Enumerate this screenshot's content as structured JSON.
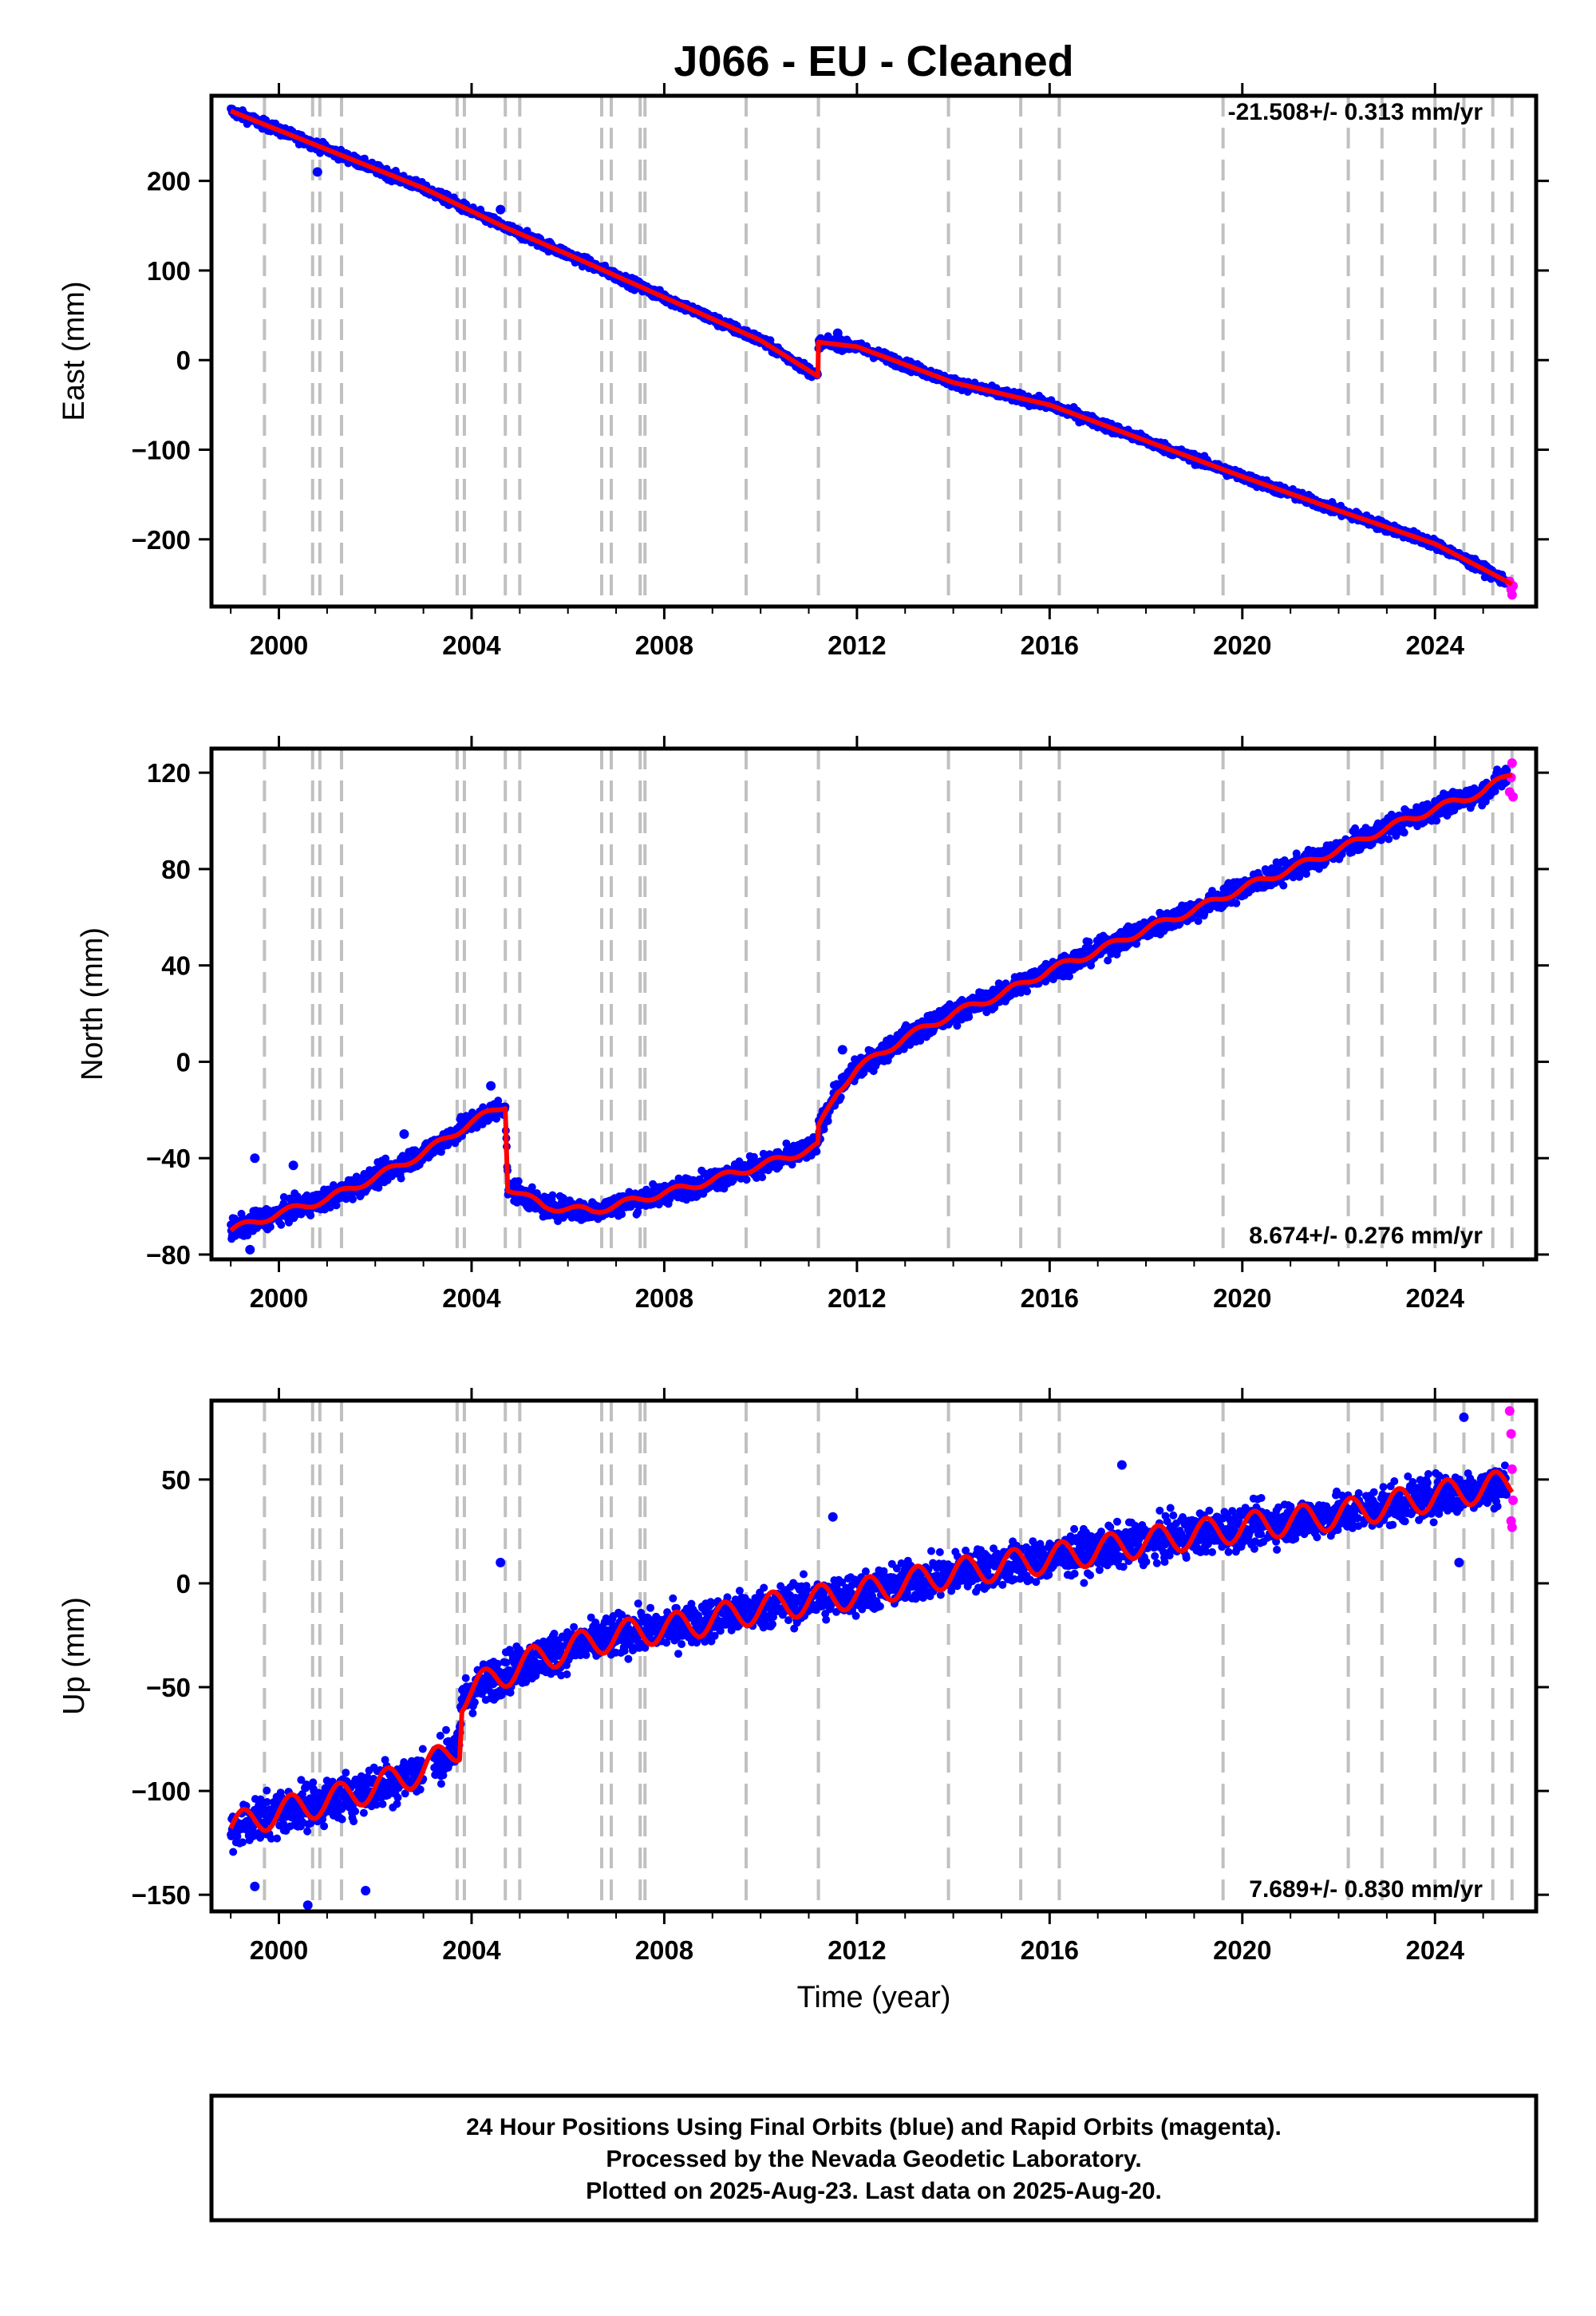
{
  "title": "J066  - EU - Cleaned",
  "xlabel": "Time (year)",
  "footer": [
    "24 Hour Positions Using Final Orbits (blue) and Rapid Orbits (magenta).",
    "Processed by the Nevada Geodetic Laboratory.",
    "Plotted on 2025-Aug-23. Last data on 2025-Aug-20."
  ],
  "colors": {
    "final": "#0000ff",
    "rapid": "#ff00ff",
    "model": "#ff0000",
    "events": "#c0c0c0"
  },
  "chart_data": [
    {
      "type": "scatter",
      "ylabel": "East (mm)",
      "rate": "-21.508+/- 0.313 mm/yr",
      "xlim": [
        1998.6,
        2026.1
      ],
      "ylim": [
        -275,
        295
      ],
      "xticks": [
        2000,
        2004,
        2008,
        2012,
        2016,
        2020,
        2024
      ],
      "yticks": [
        -200,
        -100,
        0,
        100,
        200
      ],
      "events": [
        1999.7,
        2000.7,
        2000.85,
        2001.3,
        2003.7,
        2003.85,
        2004.7,
        2005.0,
        2006.7,
        2006.9,
        2007.5,
        2007.6,
        2009.7,
        2011.2,
        2013.9,
        2015.4,
        2016.2,
        2019.6,
        2022.2,
        2022.9,
        2024.0,
        2024.6,
        2025.2,
        2025.6
      ],
      "trend": [
        [
          1999.0,
          278
        ],
        [
          2001.0,
          235
        ],
        [
          2003.0,
          192
        ],
        [
          2004.7,
          148
        ],
        [
          2006.0,
          118
        ],
        [
          2008.0,
          70
        ],
        [
          2010.0,
          22
        ],
        [
          2011.19,
          -18
        ],
        [
          2011.2,
          20
        ],
        [
          2012.0,
          15
        ],
        [
          2014.0,
          -25
        ],
        [
          2016.0,
          -50
        ],
        [
          2018.0,
          -90
        ],
        [
          2020.0,
          -130
        ],
        [
          2022.0,
          -168
        ],
        [
          2024.0,
          -205
        ],
        [
          2025.6,
          -250
        ]
      ],
      "outliers": [
        [
          2000.8,
          210
        ],
        [
          2004.6,
          168
        ],
        [
          2011.6,
          30
        ]
      ],
      "rapid": [
        [
          2025.55,
          -247
        ],
        [
          2025.58,
          -256
        ],
        [
          2025.6,
          -262
        ],
        [
          2025.62,
          -252
        ]
      ]
    },
    {
      "type": "scatter",
      "ylabel": "North (mm)",
      "rate": "8.674+/- 0.276 mm/yr",
      "xlim": [
        1998.6,
        2026.1
      ],
      "ylim": [
        -82,
        130
      ],
      "xticks": [
        2000,
        2004,
        2008,
        2012,
        2016,
        2020,
        2024
      ],
      "yticks": [
        -80,
        -40,
        0,
        40,
        80,
        120
      ],
      "events": [
        1999.7,
        2000.7,
        2000.85,
        2001.3,
        2003.7,
        2003.85,
        2004.7,
        2005.0,
        2006.7,
        2006.9,
        2007.5,
        2007.6,
        2009.7,
        2011.2,
        2013.9,
        2015.4,
        2016.2,
        2019.6,
        2022.2,
        2022.9,
        2024.0,
        2024.6,
        2025.2,
        2025.6
      ],
      "trend": [
        [
          1999.0,
          -70
        ],
        [
          2000.0,
          -63
        ],
        [
          2001.0,
          -57
        ],
        [
          2002.0,
          -48
        ],
        [
          2003.0,
          -38
        ],
        [
          2004.0,
          -25
        ],
        [
          2004.7,
          -18
        ],
        [
          2004.75,
          -52
        ],
        [
          2005.5,
          -60
        ],
        [
          2006.5,
          -62
        ],
        [
          2007.5,
          -57
        ],
        [
          2008.5,
          -52
        ],
        [
          2009.5,
          -46
        ],
        [
          2010.5,
          -40
        ],
        [
          2011.19,
          -35
        ],
        [
          2011.2,
          -28
        ],
        [
          2011.6,
          -12
        ],
        [
          2012.0,
          -3
        ],
        [
          2013.0,
          10
        ],
        [
          2014.0,
          20
        ],
        [
          2015.0,
          28
        ],
        [
          2016.0,
          38
        ],
        [
          2017.0,
          46
        ],
        [
          2018.0,
          55
        ],
        [
          2019.0,
          63
        ],
        [
          2020.0,
          72
        ],
        [
          2021.0,
          80
        ],
        [
          2022.0,
          88
        ],
        [
          2023.0,
          97
        ],
        [
          2024.0,
          105
        ],
        [
          2025.0,
          112
        ],
        [
          2025.6,
          120
        ]
      ],
      "outliers": [
        [
          1999.5,
          -40
        ],
        [
          1999.4,
          -78
        ],
        [
          2002.6,
          -30
        ],
        [
          2004.4,
          -10
        ],
        [
          2011.7,
          5
        ],
        [
          2000.3,
          -43
        ]
      ],
      "rapid": [
        [
          2025.55,
          112
        ],
        [
          2025.58,
          118
        ],
        [
          2025.6,
          124
        ],
        [
          2025.62,
          110
        ]
      ]
    },
    {
      "type": "scatter",
      "ylabel": "Up (mm)",
      "rate": "7.689+/- 0.830 mm/yr",
      "xlim": [
        1998.6,
        2026.1
      ],
      "ylim": [
        -158,
        88
      ],
      "xticks": [
        2000,
        2004,
        2008,
        2012,
        2016,
        2020,
        2024
      ],
      "yticks": [
        -150,
        -100,
        -50,
        0,
        50
      ],
      "events": [
        1999.7,
        2000.7,
        2000.85,
        2001.3,
        2003.7,
        2003.85,
        2004.7,
        2005.0,
        2006.7,
        2006.9,
        2007.5,
        2007.6,
        2009.7,
        2011.2,
        2013.9,
        2015.4,
        2016.2,
        2019.6,
        2022.2,
        2022.9,
        2024.0,
        2024.6,
        2025.2,
        2025.6
      ],
      "trend": [
        [
          1999.0,
          -118
        ],
        [
          2000.0,
          -110
        ],
        [
          2001.0,
          -105
        ],
        [
          2002.0,
          -98
        ],
        [
          2003.0,
          -90
        ],
        [
          2003.75,
          -78
        ],
        [
          2003.8,
          -55
        ],
        [
          2004.5,
          -45
        ],
        [
          2005.5,
          -35
        ],
        [
          2007.0,
          -25
        ],
        [
          2008.5,
          -20
        ],
        [
          2010.0,
          -12
        ],
        [
          2012.0,
          -5
        ],
        [
          2014.0,
          5
        ],
        [
          2016.0,
          12
        ],
        [
          2018.0,
          20
        ],
        [
          2020.0,
          27
        ],
        [
          2022.0,
          33
        ],
        [
          2024.0,
          42
        ],
        [
          2025.6,
          48
        ]
      ],
      "outliers": [
        [
          2000.6,
          -155
        ],
        [
          2001.8,
          -148
        ],
        [
          2004.6,
          10
        ],
        [
          2011.5,
          32
        ],
        [
          2024.6,
          80
        ],
        [
          2024.5,
          10
        ],
        [
          1999.5,
          -146
        ],
        [
          2017.5,
          57
        ]
      ],
      "rapid": [
        [
          2025.55,
          83
        ],
        [
          2025.58,
          72
        ],
        [
          2025.6,
          55
        ],
        [
          2025.62,
          40
        ],
        [
          2025.6,
          27
        ],
        [
          2025.58,
          30
        ]
      ]
    }
  ]
}
